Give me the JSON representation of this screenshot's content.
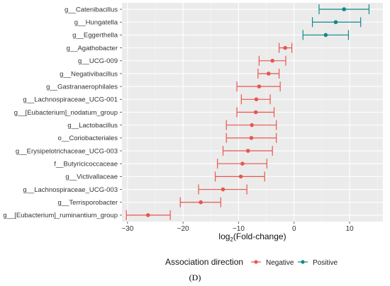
{
  "chart_data": {
    "type": "forest",
    "xlabel": "log2(Fold-change)",
    "xlim": [
      -31,
      16
    ],
    "xticks": [
      -30,
      -20,
      -10,
      0,
      10
    ],
    "grid": true,
    "legend": {
      "title": "Association direction",
      "position": "bottom",
      "entries": [
        {
          "name": "Negative",
          "color": "#e8574e"
        },
        {
          "name": "Positive",
          "color": "#0e8a8a"
        }
      ]
    },
    "caption": "(D)",
    "rows": [
      {
        "label": "g__Catenibacillus",
        "value": 9.0,
        "low": 4.5,
        "high": 13.5,
        "direction": "Positive"
      },
      {
        "label": "g__Hungatella",
        "value": 7.5,
        "low": 3.3,
        "high": 12.0,
        "direction": "Positive"
      },
      {
        "label": "g__Eggerthella",
        "value": 5.7,
        "low": 1.6,
        "high": 9.8,
        "direction": "Positive"
      },
      {
        "label": "g__Agathobacter",
        "value": -1.6,
        "low": -2.7,
        "high": -0.4,
        "direction": "Negative"
      },
      {
        "label": "g__UCG-009",
        "value": -3.9,
        "low": -6.3,
        "high": -1.5,
        "direction": "Negative"
      },
      {
        "label": "g__Negativibacillus",
        "value": -4.6,
        "low": -6.5,
        "high": -2.7,
        "direction": "Negative"
      },
      {
        "label": "g__Gastranaerophilales",
        "value": -6.3,
        "low": -10.3,
        "high": -2.5,
        "direction": "Negative"
      },
      {
        "label": "g__Lachnospiraceae_UCG-001",
        "value": -6.8,
        "low": -9.5,
        "high": -4.3,
        "direction": "Negative"
      },
      {
        "label": "g__[Eubacterium]_nodatum_group",
        "value": -6.9,
        "low": -10.3,
        "high": -3.6,
        "direction": "Negative"
      },
      {
        "label": "g__Lactobacillus",
        "value": -7.6,
        "low": -12.2,
        "high": -3.2,
        "direction": "Negative"
      },
      {
        "label": "o__Coriobacteriales",
        "value": -7.7,
        "low": -12.2,
        "high": -3.2,
        "direction": "Negative"
      },
      {
        "label": "g__Erysipelotrichaceae_UCG-003",
        "value": -8.3,
        "low": -12.8,
        "high": -3.9,
        "direction": "Negative"
      },
      {
        "label": "f__Butyricicoccaceae",
        "value": -9.3,
        "low": -13.8,
        "high": -4.9,
        "direction": "Negative"
      },
      {
        "label": "g__Victivallaceae",
        "value": -9.6,
        "low": -14.2,
        "high": -5.3,
        "direction": "Negative"
      },
      {
        "label": "g__Lachnospiraceae_UCG-003",
        "value": -12.8,
        "low": -17.2,
        "high": -8.5,
        "direction": "Negative"
      },
      {
        "label": "g__Terrisporobacter",
        "value": -16.8,
        "low": -20.5,
        "high": -13.2,
        "direction": "Negative"
      },
      {
        "label": "g__[Eubacterium]_ruminantium_group",
        "value": -26.3,
        "low": -30.2,
        "high": -22.3,
        "direction": "Negative"
      }
    ]
  }
}
